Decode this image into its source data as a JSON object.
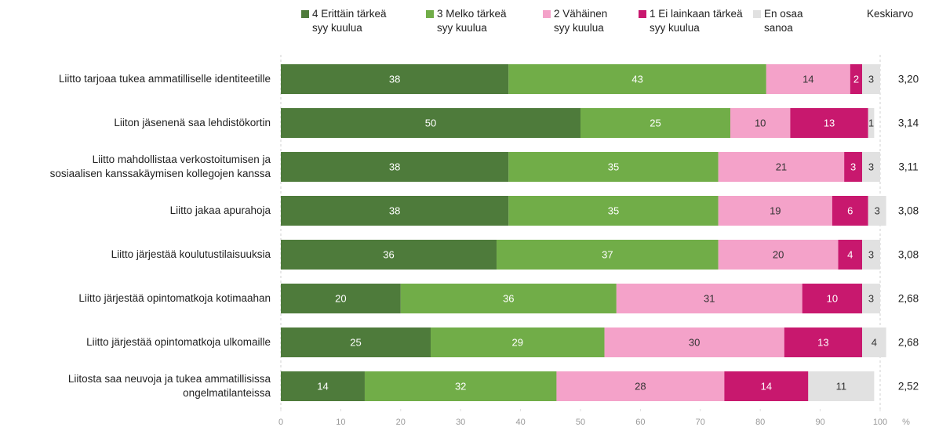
{
  "chart_data": {
    "type": "stacked_bar_horizontal",
    "categories": [
      "Liitto tarjoaa tukea ammatilliselle identiteetille",
      "Liiton jäsenenä saa lehdistökortin",
      "Liitto mahdollistaa verkostoitumisen ja\nsosiaalisen kanssakäymisen kollegojen kanssa",
      "Liitto jakaa apurahoja",
      "Liitto järjestää koulutustilaisuuksia",
      "Liitto järjestää opintomatkoja kotimaahan",
      "Liitto järjestää opintomatkoja ulkomaille",
      "Liitosta saa neuvoja ja tukea ammatillisissa\nongelmatilanteissa"
    ],
    "series": [
      {
        "name": "4 Erittäin tärkeä\nsyy kuulua",
        "color": "#4e7b3b",
        "label_color": "#ffffff",
        "values": [
          38,
          50,
          38,
          38,
          36,
          20,
          25,
          14
        ]
      },
      {
        "name": "3 Melko tärkeä\nsyy kuulua",
        "color": "#71ad48",
        "label_color": "#ffffff",
        "values": [
          43,
          25,
          35,
          35,
          37,
          36,
          29,
          32
        ]
      },
      {
        "name": "2 Vähäinen\nsyy kuulua",
        "color": "#f4a2c9",
        "label_color": "#333333",
        "values": [
          14,
          10,
          21,
          19,
          20,
          31,
          30,
          28
        ]
      },
      {
        "name": "1 Ei lainkaan tärkeä\nsyy kuulua",
        "color": "#c8186e",
        "label_color": "#ffffff",
        "values": [
          2,
          13,
          3,
          6,
          4,
          10,
          13,
          14
        ]
      },
      {
        "name": "En osaa\nsanoa",
        "color": "#e1e1e1",
        "label_color": "#333333",
        "values": [
          3,
          1,
          3,
          3,
          3,
          3,
          4,
          11
        ]
      }
    ],
    "mean_header": "Keskiarvo",
    "means": [
      "3,20",
      "3,14",
      "3,11",
      "3,08",
      "3,08",
      "2,68",
      "2,68",
      "2,52"
    ],
    "xlim": [
      0,
      100
    ],
    "xticks": [
      0,
      10,
      20,
      30,
      40,
      50,
      60,
      70,
      80,
      90,
      100
    ],
    "x_unit": "%"
  }
}
